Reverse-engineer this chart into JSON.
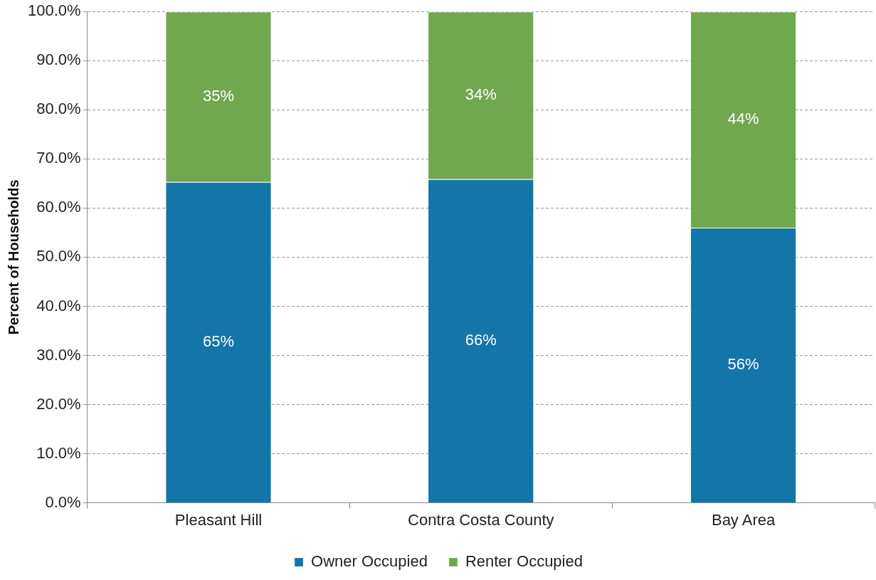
{
  "chart_data": {
    "type": "bar",
    "stacked": true,
    "ylabel": "Percent of Households",
    "categories": [
      "Pleasant Hill",
      "Contra Costa County",
      "Bay Area"
    ],
    "series": [
      {
        "name": "Owner Occupied",
        "color": "#1475a8",
        "values": [
          65.3,
          65.9,
          56.0
        ],
        "value_labels": [
          "65%",
          "66%",
          "56%"
        ]
      },
      {
        "name": "Renter Occupied",
        "color": "#70a84f",
        "values": [
          34.7,
          34.1,
          44.0
        ],
        "value_labels": [
          "35%",
          "34%",
          "44%"
        ]
      }
    ],
    "ylim": [
      0,
      100
    ],
    "yticks": [
      {
        "value": 0,
        "label": "0.0%"
      },
      {
        "value": 10,
        "label": "10.0%"
      },
      {
        "value": 20,
        "label": "20.0%"
      },
      {
        "value": 30,
        "label": "30.0%"
      },
      {
        "value": 40,
        "label": "40.0%"
      },
      {
        "value": 50,
        "label": "50.0%"
      },
      {
        "value": 60,
        "label": "60.0%"
      },
      {
        "value": 70,
        "label": "70.0%"
      },
      {
        "value": 80,
        "label": "80.0%"
      },
      {
        "value": 90,
        "label": "90.0%"
      },
      {
        "value": 100,
        "label": "100.0%"
      }
    ],
    "grid": "y",
    "legend": "bottom"
  }
}
